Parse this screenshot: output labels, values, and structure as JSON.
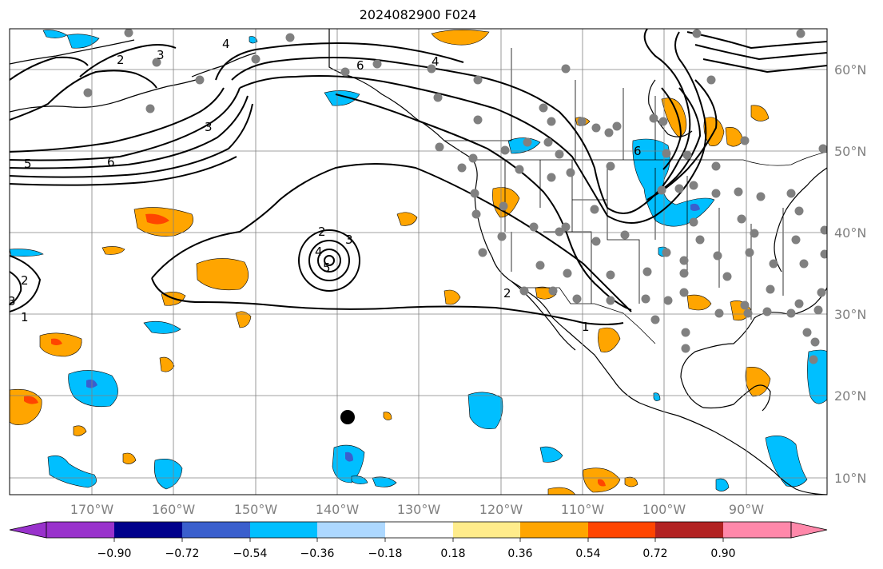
{
  "title": "2024082900 F024",
  "map": {
    "lon_labels": [
      "170°W",
      "160°W",
      "150°W",
      "140°W",
      "130°W",
      "120°W",
      "110°W",
      "100°W",
      "90°W"
    ],
    "lat_labels": [
      "60°N",
      "50°N",
      "40°N",
      "30°N",
      "20°N",
      "10°N"
    ],
    "label_color": "#808080",
    "contour_labels": [
      {
        "id": "c1",
        "text": "4"
      },
      {
        "id": "c2",
        "text": "2"
      },
      {
        "id": "c3",
        "text": "3"
      },
      {
        "id": "c4",
        "text": "3"
      },
      {
        "id": "c5",
        "text": "5"
      },
      {
        "id": "c6",
        "text": "6"
      },
      {
        "id": "c7",
        "text": "6"
      },
      {
        "id": "c8",
        "text": "4"
      },
      {
        "id": "c9",
        "text": "2"
      },
      {
        "id": "c10",
        "text": "3"
      },
      {
        "id": "c11",
        "text": "4"
      },
      {
        "id": "c12",
        "text": "5"
      },
      {
        "id": "c13",
        "text": "2"
      },
      {
        "id": "c14",
        "text": "3"
      },
      {
        "id": "c15",
        "text": "1"
      },
      {
        "id": "c16",
        "text": "2"
      },
      {
        "id": "c17",
        "text": "1"
      },
      {
        "id": "c18",
        "text": "6"
      }
    ]
  },
  "colorbar": {
    "ticks": [
      "−0.90",
      "−0.72",
      "−0.54",
      "−0.36",
      "−0.18",
      "0.18",
      "0.36",
      "0.54",
      "0.72",
      "0.90"
    ],
    "colors": [
      "#9932cc",
      "#00008b",
      "#3a5fcd",
      "#00bfff",
      "#add8ff",
      "#ffffff",
      "#ffec8b",
      "#ffa500",
      "#ff4500",
      "#b22222",
      "#ff88aa"
    ]
  }
}
